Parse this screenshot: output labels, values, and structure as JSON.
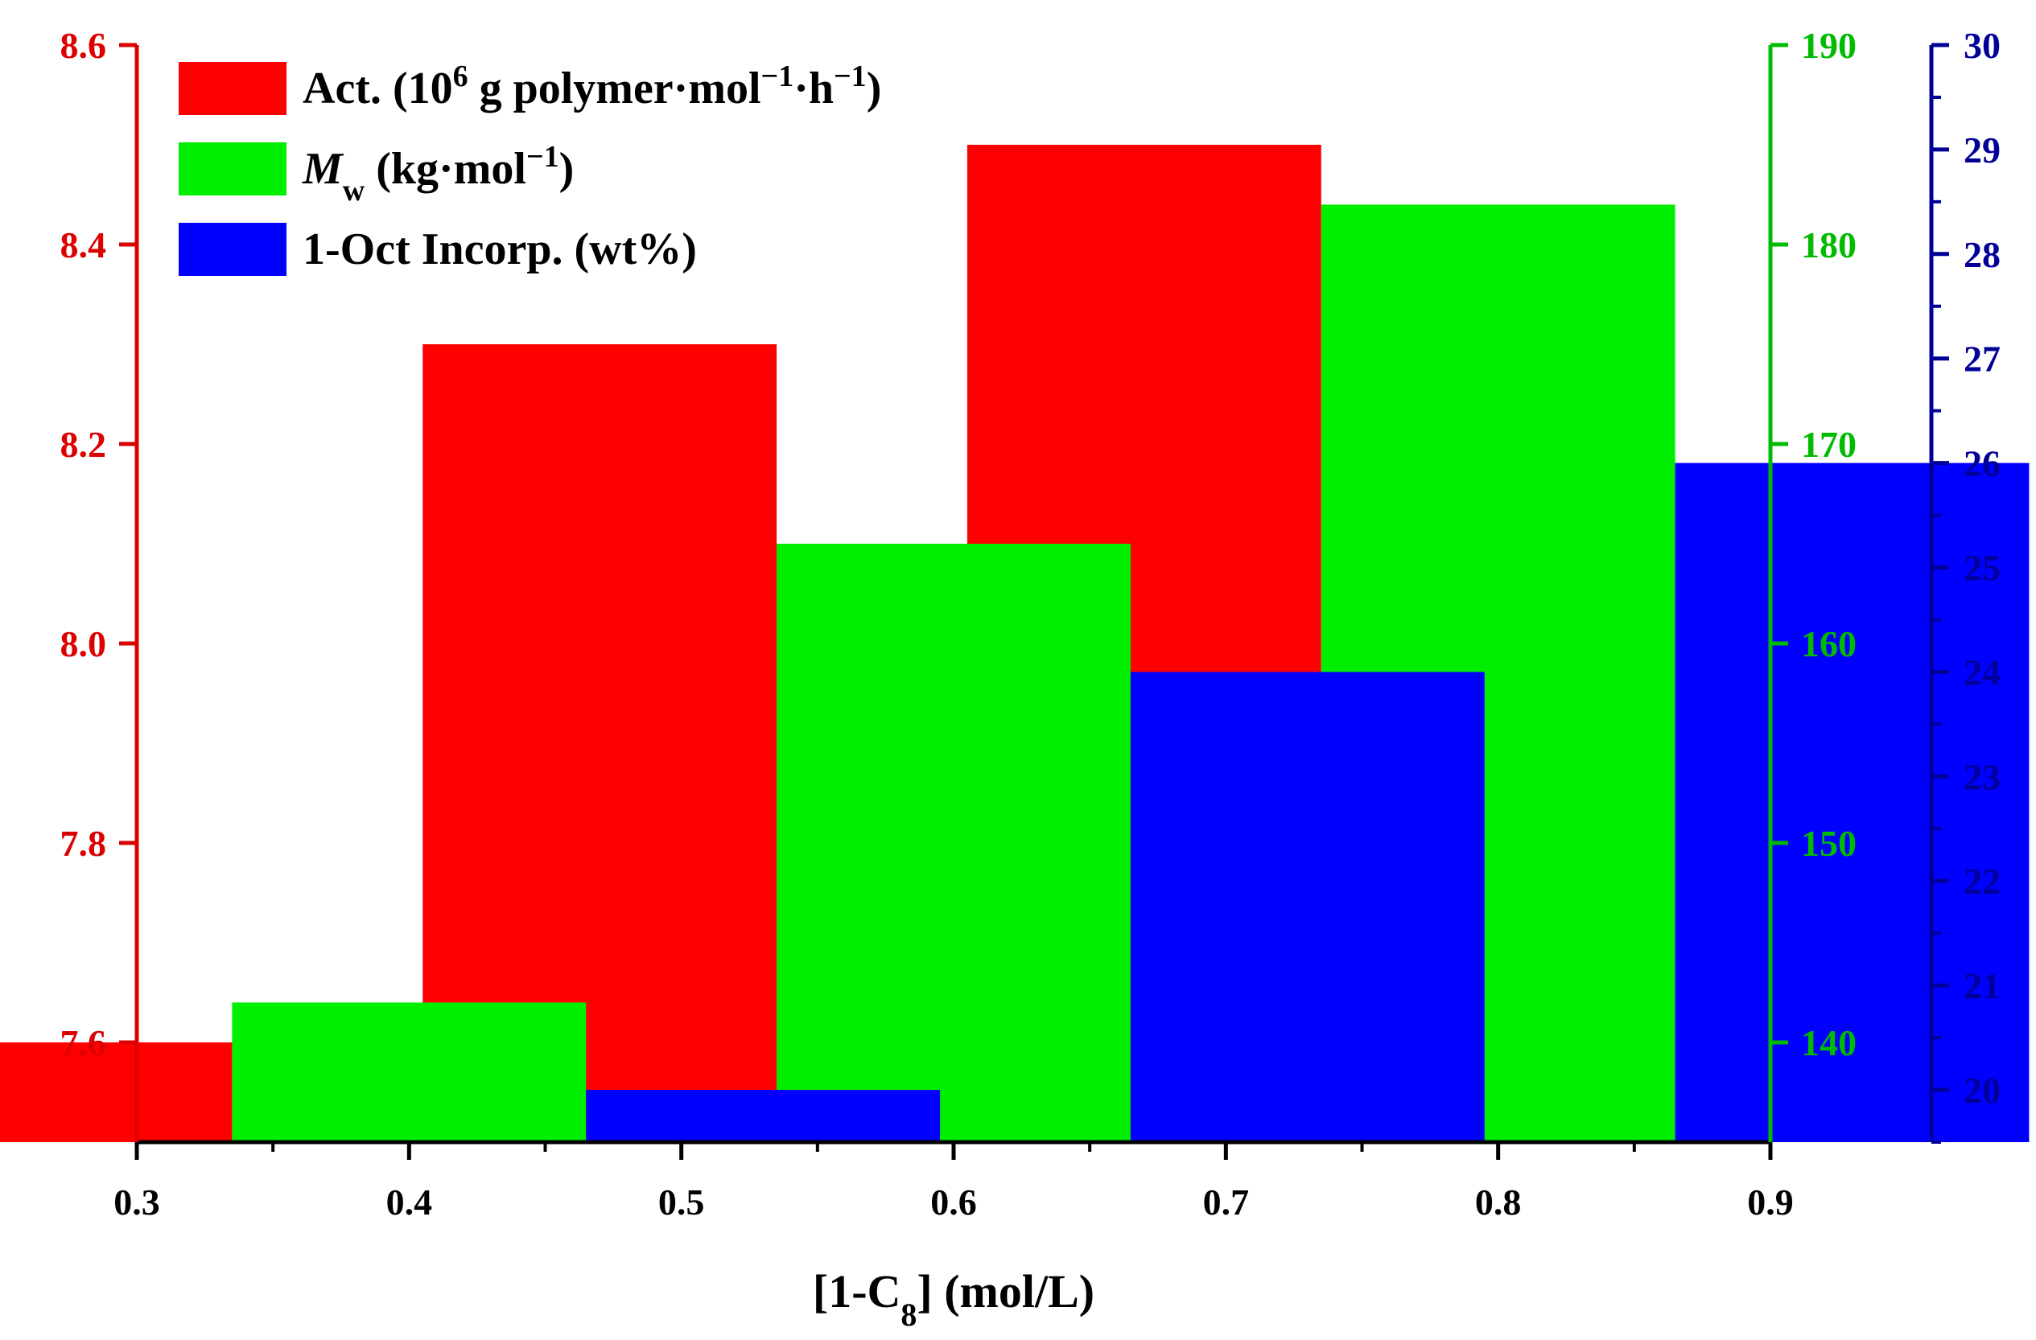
{
  "chart_data": {
    "type": "bar",
    "xlabel": {
      "main": "[1-C",
      "sub": "8",
      "tail": "] (mol/L)"
    },
    "x_ticks": [
      "0.3",
      "0.4",
      "0.5",
      "0.6",
      "0.7",
      "0.8",
      "0.9"
    ],
    "xlim": [
      0.3,
      0.9
    ],
    "categories": [
      0.4,
      0.6,
      0.8
    ],
    "group_width": 0.13,
    "series": [
      {
        "name": "Act.",
        "legend": {
          "pre": "Act. (10",
          "sup1": "6",
          "mid": " g polymer·mol",
          "sup2": "−1",
          "mid2": "·h",
          "sup3": "−1",
          "post": ")"
        },
        "axis": "left",
        "color": "#ff0000",
        "values": [
          7.6,
          8.3,
          8.5
        ]
      },
      {
        "name": "Mw",
        "legend": {
          "pre": "M",
          "sub": "w",
          "mid": " (kg·mol",
          "sup": "−1",
          "post": ")"
        },
        "axis": "right1",
        "color": "#00ee00",
        "values": [
          142,
          165,
          182
        ]
      },
      {
        "name": "1-Oct Incorp.",
        "legend": {
          "text": "1-Oct Incorp. (wt%)"
        },
        "axis": "right2",
        "color": "#0000ff",
        "values": [
          20.0,
          24.0,
          26.0
        ]
      }
    ],
    "axes": {
      "left": {
        "ylim": [
          7.5,
          8.6
        ],
        "ticks": [
          "7.6",
          "7.8",
          "8.0",
          "8.2",
          "8.4",
          "8.6"
        ],
        "color": "#dd0000"
      },
      "right1": {
        "ylim": [
          135,
          190
        ],
        "ticks": [
          "140",
          "150",
          "160",
          "170",
          "180",
          "190"
        ],
        "color": "#00bb00"
      },
      "right2": {
        "ylim": [
          19.5,
          30
        ],
        "ticks": [
          "20",
          "21",
          "22",
          "23",
          "24",
          "25",
          "26",
          "27",
          "28",
          "29",
          "30"
        ],
        "color": "#000099"
      }
    },
    "legend_position": "top-left"
  }
}
